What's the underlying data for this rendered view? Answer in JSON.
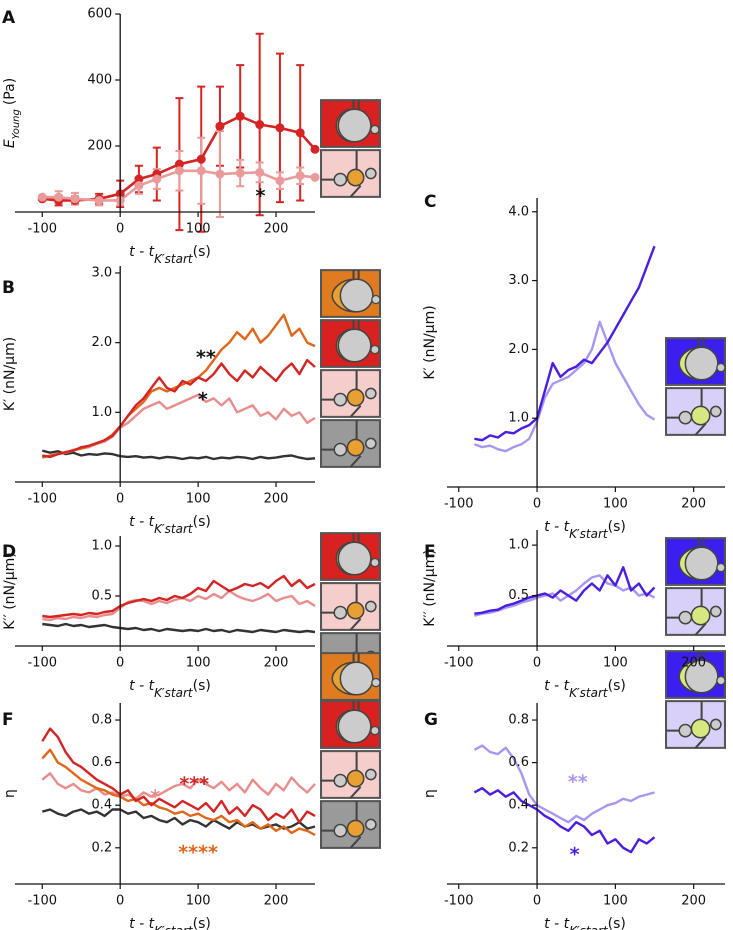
{
  "chart_data": [
    {
      "type": "line",
      "panel": "A",
      "xlabel": [
        "t - t",
        "K′start",
        "(s)"
      ],
      "ylabel": [
        "E",
        "Young",
        "(Pa)"
      ],
      "xlim": [
        -135,
        250
      ],
      "ylim": [
        0,
        600
      ],
      "xticks": [
        -100,
        0,
        100,
        200
      ],
      "yticks": [
        200,
        400,
        600
      ],
      "x": [
        -100,
        -79,
        -58,
        -27,
        0,
        24,
        47,
        76,
        104,
        128,
        154,
        179,
        205,
        231,
        250
      ],
      "series": [
        {
          "color": "#d42424",
          "values": [
            40,
            35,
            35,
            40,
            55,
            100,
            115,
            145,
            160,
            260,
            290,
            265,
            255,
            240,
            190
          ],
          "errors": [
            null,
            15,
            12,
            15,
            40,
            40,
            80,
            200,
            220,
            120,
            155,
            275,
            225,
            205,
            null
          ]
        },
        {
          "color": "#eb9a9a",
          "values": [
            45,
            45,
            40,
            35,
            35,
            80,
            100,
            125,
            125,
            115,
            118,
            120,
            95,
            110,
            105
          ],
          "errors": [
            null,
            18,
            18,
            15,
            15,
            25,
            30,
            60,
            100,
            130,
            40,
            30,
            25,
            25,
            null
          ]
        }
      ],
      "annotations": [
        {
          "text": "*",
          "color": "#111111"
        }
      ]
    },
    {
      "type": "line",
      "panel": "B",
      "xlabel": [
        "t - t",
        "K′start",
        "(s)"
      ],
      "ylabel": "K′ (nN/μm)",
      "xlim": [
        -135,
        250
      ],
      "ylim": [
        0,
        3.1
      ],
      "xticks": [
        -100,
        0,
        100,
        200
      ],
      "yticks": [
        {
          "value": 1,
          "label": "1.0"
        },
        {
          "value": 2,
          "label": "2.0"
        },
        {
          "value": 3,
          "label": "3.0"
        }
      ],
      "x": [
        -100,
        -90,
        -80,
        -70,
        -60,
        -50,
        -40,
        -30,
        -20,
        -10,
        0,
        10,
        20,
        30,
        40,
        50,
        60,
        70,
        80,
        90,
        100,
        110,
        120,
        130,
        140,
        150,
        160,
        170,
        180,
        190,
        200,
        210,
        220,
        230,
        240,
        250
      ],
      "series": [
        {
          "color": "#333333",
          "values": [
            0.45,
            0.42,
            0.44,
            0.4,
            0.42,
            0.38,
            0.4,
            0.39,
            0.41,
            0.4,
            0.37,
            0.36,
            0.37,
            0.35,
            0.36,
            0.34,
            0.36,
            0.35,
            0.33,
            0.35,
            0.34,
            0.36,
            0.33,
            0.35,
            0.34,
            0.36,
            0.35,
            0.33,
            0.36,
            0.34,
            0.35,
            0.37,
            0.38,
            0.35,
            0.33,
            0.34
          ]
        },
        {
          "color": "#e88c8c",
          "values": [
            0.38,
            0.36,
            0.4,
            0.42,
            0.45,
            0.48,
            0.5,
            0.55,
            0.58,
            0.65,
            0.78,
            0.85,
            0.95,
            1.05,
            1.1,
            1.15,
            1.05,
            1.1,
            1.15,
            1.2,
            1.25,
            1.15,
            1.2,
            1.1,
            1.2,
            1.0,
            1.05,
            1.1,
            0.95,
            1.0,
            0.9,
            1.05,
            0.95,
            1.0,
            0.85,
            0.92
          ]
        },
        {
          "color": "#e0661a",
          "values": [
            0.35,
            0.38,
            0.4,
            0.42,
            0.46,
            0.48,
            0.52,
            0.55,
            0.6,
            0.68,
            0.8,
            0.95,
            1.05,
            1.15,
            1.3,
            1.35,
            1.3,
            1.35,
            1.4,
            1.45,
            1.5,
            1.6,
            1.75,
            1.9,
            2.0,
            2.15,
            2.05,
            2.2,
            2.0,
            2.1,
            2.25,
            2.4,
            2.1,
            2.2,
            2.0,
            1.95
          ]
        },
        {
          "color": "#d42424",
          "values": [
            0.38,
            0.36,
            0.4,
            0.43,
            0.45,
            0.5,
            0.52,
            0.56,
            0.6,
            0.66,
            0.8,
            0.95,
            1.1,
            1.2,
            1.35,
            1.5,
            1.35,
            1.3,
            1.45,
            1.4,
            1.5,
            1.45,
            1.55,
            1.7,
            1.55,
            1.45,
            1.6,
            1.5,
            1.65,
            1.55,
            1.45,
            1.6,
            1.7,
            1.55,
            1.75,
            1.65
          ]
        }
      ],
      "annotations": [
        {
          "text": "**",
          "color": "#111111"
        },
        {
          "text": "*",
          "color": "#111111"
        }
      ]
    },
    {
      "type": "line",
      "panel": "C",
      "xlabel": [
        "t - t",
        "K′start",
        "(s)"
      ],
      "ylabel": "K′ (nN/μm)",
      "xlim": [
        -115,
        240
      ],
      "ylim": [
        0,
        4.2
      ],
      "xticks": [
        -100,
        0,
        100,
        200
      ],
      "yticks": [
        {
          "value": 1,
          "label": "1.0"
        },
        {
          "value": 2,
          "label": "2.0"
        },
        {
          "value": 3,
          "label": "3.0"
        },
        {
          "value": 4,
          "label": "4.0"
        }
      ],
      "x": [
        -80,
        -70,
        -60,
        -50,
        -40,
        -30,
        -20,
        -10,
        0,
        10,
        20,
        30,
        40,
        50,
        60,
        70,
        80,
        90,
        100,
        110,
        120,
        130,
        140,
        150
      ],
      "series": [
        {
          "color": "#a896f2",
          "values": [
            0.62,
            0.58,
            0.6,
            0.55,
            0.52,
            0.58,
            0.62,
            0.7,
            0.95,
            1.3,
            1.5,
            1.55,
            1.6,
            1.7,
            1.8,
            2.0,
            2.4,
            2.1,
            1.8,
            1.6,
            1.4,
            1.2,
            1.05,
            0.98
          ]
        },
        {
          "color": "#4a1ee0",
          "values": [
            0.7,
            0.68,
            0.75,
            0.72,
            0.8,
            0.78,
            0.85,
            0.9,
            1.0,
            1.4,
            1.8,
            1.6,
            1.7,
            1.75,
            1.85,
            1.8,
            1.95,
            2.1,
            2.3,
            2.5,
            2.7,
            2.9,
            3.2,
            3.5
          ]
        }
      ],
      "annotations": []
    },
    {
      "type": "line",
      "panel": "D",
      "xlabel": [
        "t - t",
        "K′start",
        "(s)"
      ],
      "ylabel": "K′′ (nN/μm)",
      "xlim": [
        -135,
        250
      ],
      "ylim": [
        0,
        1.1
      ],
      "xticks": [
        -100,
        0,
        100,
        200
      ],
      "yticks": [
        0.5,
        {
          "value": 1,
          "label": "1.0"
        }
      ],
      "x": [
        -100,
        -90,
        -80,
        -70,
        -60,
        -50,
        -40,
        -30,
        -20,
        -10,
        0,
        10,
        20,
        30,
        40,
        50,
        60,
        70,
        80,
        90,
        100,
        110,
        120,
        130,
        140,
        150,
        160,
        170,
        180,
        190,
        200,
        210,
        220,
        230,
        240,
        250
      ],
      "series": [
        {
          "color": "#333333",
          "values": [
            0.22,
            0.21,
            0.2,
            0.22,
            0.2,
            0.21,
            0.19,
            0.2,
            0.21,
            0.19,
            0.18,
            0.17,
            0.18,
            0.16,
            0.17,
            0.15,
            0.17,
            0.16,
            0.15,
            0.16,
            0.15,
            0.17,
            0.15,
            0.16,
            0.14,
            0.16,
            0.15,
            0.14,
            0.16,
            0.15,
            0.14,
            0.16,
            0.15,
            0.14,
            0.15,
            0.14
          ]
        },
        {
          "color": "#e88c8c",
          "values": [
            0.27,
            0.26,
            0.28,
            0.27,
            0.29,
            0.28,
            0.3,
            0.29,
            0.31,
            0.32,
            0.38,
            0.44,
            0.46,
            0.45,
            0.42,
            0.45,
            0.43,
            0.46,
            0.48,
            0.45,
            0.5,
            0.47,
            0.52,
            0.48,
            0.55,
            0.5,
            0.47,
            0.45,
            0.48,
            0.52,
            0.45,
            0.48,
            0.5,
            0.42,
            0.45,
            0.4
          ]
        },
        {
          "color": "#d42424",
          "values": [
            0.3,
            0.29,
            0.3,
            0.31,
            0.32,
            0.31,
            0.33,
            0.32,
            0.34,
            0.35,
            0.4,
            0.43,
            0.45,
            0.47,
            0.45,
            0.48,
            0.46,
            0.5,
            0.48,
            0.52,
            0.58,
            0.55,
            0.65,
            0.6,
            0.55,
            0.58,
            0.62,
            0.6,
            0.63,
            0.58,
            0.65,
            0.7,
            0.6,
            0.66,
            0.58,
            0.62
          ]
        }
      ],
      "annotations": []
    },
    {
      "type": "line",
      "panel": "E",
      "xlabel": [
        "t - t",
        "K′start",
        "(s)"
      ],
      "ylabel": "K′′ (nN/μm)",
      "xlim": [
        -115,
        240
      ],
      "ylim": [
        0,
        1.15
      ],
      "xticks": [
        -100,
        0,
        100,
        200
      ],
      "yticks": [
        0.5,
        {
          "value": 1,
          "label": "1.0"
        }
      ],
      "x": [
        -80,
        -70,
        -60,
        -50,
        -40,
        -30,
        -20,
        -10,
        0,
        10,
        20,
        30,
        40,
        50,
        60,
        70,
        80,
        90,
        100,
        110,
        120,
        130,
        140,
        150
      ],
      "series": [
        {
          "color": "#a896f2",
          "values": [
            0.3,
            0.32,
            0.33,
            0.35,
            0.38,
            0.4,
            0.43,
            0.45,
            0.48,
            0.5,
            0.52,
            0.45,
            0.5,
            0.55,
            0.62,
            0.68,
            0.7,
            0.62,
            0.6,
            0.55,
            0.58,
            0.5,
            0.52,
            0.48
          ]
        },
        {
          "color": "#4a1ee0",
          "values": [
            0.32,
            0.33,
            0.35,
            0.36,
            0.4,
            0.42,
            0.45,
            0.48,
            0.5,
            0.52,
            0.48,
            0.55,
            0.5,
            0.45,
            0.55,
            0.62,
            0.55,
            0.7,
            0.6,
            0.78,
            0.55,
            0.62,
            0.5,
            0.58
          ]
        }
      ],
      "annotations": []
    },
    {
      "type": "line",
      "panel": "F",
      "xlabel": [
        "t - t",
        "K′start",
        "(s)"
      ],
      "ylabel": "η",
      "xlim": [
        -135,
        250
      ],
      "ylim": [
        0.03,
        0.88
      ],
      "xticks": [
        -100,
        0,
        100,
        200
      ],
      "yticks": [
        0.2,
        0.4,
        0.6,
        0.8
      ],
      "x": [
        -100,
        -90,
        -80,
        -70,
        -60,
        -50,
        -40,
        -30,
        -20,
        -10,
        0,
        10,
        20,
        30,
        40,
        50,
        60,
        70,
        80,
        90,
        100,
        110,
        120,
        130,
        140,
        150,
        160,
        170,
        180,
        190,
        200,
        210,
        220,
        230,
        240,
        250
      ],
      "series": [
        {
          "color": "#333333",
          "values": [
            0.37,
            0.38,
            0.36,
            0.35,
            0.37,
            0.38,
            0.36,
            0.37,
            0.35,
            0.38,
            0.38,
            0.36,
            0.37,
            0.34,
            0.35,
            0.33,
            0.32,
            0.34,
            0.31,
            0.33,
            0.32,
            0.3,
            0.33,
            0.31,
            0.29,
            0.32,
            0.3,
            0.31,
            0.29,
            0.3,
            0.31,
            0.29,
            0.3,
            0.32,
            0.29,
            0.3
          ]
        },
        {
          "color": "#e88c8c",
          "values": [
            0.52,
            0.55,
            0.5,
            0.48,
            0.5,
            0.47,
            0.46,
            0.48,
            0.45,
            0.46,
            0.44,
            0.45,
            0.43,
            0.46,
            0.44,
            0.45,
            0.47,
            0.49,
            0.5,
            0.48,
            0.52,
            0.5,
            0.48,
            0.51,
            0.47,
            0.5,
            0.46,
            0.52,
            0.48,
            0.45,
            0.5,
            0.47,
            0.53,
            0.49,
            0.46,
            0.5
          ]
        },
        {
          "color": "#e0661a",
          "values": [
            0.62,
            0.66,
            0.6,
            0.58,
            0.55,
            0.52,
            0.5,
            0.48,
            0.47,
            0.45,
            0.44,
            0.42,
            0.43,
            0.4,
            0.41,
            0.39,
            0.38,
            0.36,
            0.37,
            0.35,
            0.36,
            0.34,
            0.33,
            0.35,
            0.32,
            0.33,
            0.3,
            0.32,
            0.29,
            0.31,
            0.28,
            0.3,
            0.27,
            0.29,
            0.28,
            0.26
          ]
        },
        {
          "color": "#d42424",
          "values": [
            0.7,
            0.76,
            0.72,
            0.65,
            0.6,
            0.58,
            0.55,
            0.52,
            0.5,
            0.48,
            0.45,
            0.47,
            0.42,
            0.44,
            0.4,
            0.43,
            0.41,
            0.39,
            0.42,
            0.4,
            0.38,
            0.41,
            0.37,
            0.42,
            0.36,
            0.39,
            0.35,
            0.4,
            0.38,
            0.33,
            0.36,
            0.34,
            0.38,
            0.32,
            0.37,
            0.35
          ]
        }
      ],
      "annotations": [
        {
          "text": "*",
          "color": "#e88c8c"
        },
        {
          "text": "***",
          "color": "#d42424"
        },
        {
          "text": "****",
          "color": "#e0661a"
        }
      ]
    },
    {
      "type": "line",
      "panel": "G",
      "xlabel": [
        "t - t",
        "K′start",
        "(s)"
      ],
      "ylabel": "η",
      "xlim": [
        -115,
        240
      ],
      "ylim": [
        0.03,
        0.88
      ],
      "xticks": [
        -100,
        0,
        100,
        200
      ],
      "yticks": [
        0.2,
        0.4,
        0.6,
        0.8
      ],
      "x": [
        -80,
        -70,
        -60,
        -50,
        -40,
        -30,
        -20,
        -10,
        0,
        10,
        20,
        30,
        40,
        50,
        60,
        70,
        80,
        90,
        100,
        110,
        120,
        130,
        140,
        150
      ],
      "series": [
        {
          "color": "#a896f2",
          "values": [
            0.66,
            0.68,
            0.65,
            0.64,
            0.67,
            0.62,
            0.55,
            0.45,
            0.4,
            0.38,
            0.36,
            0.34,
            0.32,
            0.35,
            0.33,
            0.36,
            0.38,
            0.4,
            0.41,
            0.43,
            0.42,
            0.44,
            0.45,
            0.46
          ]
        },
        {
          "color": "#4a1ee0",
          "values": [
            0.46,
            0.48,
            0.45,
            0.47,
            0.44,
            0.46,
            0.42,
            0.4,
            0.38,
            0.35,
            0.33,
            0.3,
            0.28,
            0.32,
            0.3,
            0.26,
            0.28,
            0.22,
            0.24,
            0.2,
            0.18,
            0.24,
            0.22,
            0.25
          ]
        }
      ],
      "annotations": [
        {
          "text": "**",
          "color": "#a896f2"
        },
        {
          "text": "*",
          "color": "#4a1ee0"
        }
      ]
    }
  ]
}
